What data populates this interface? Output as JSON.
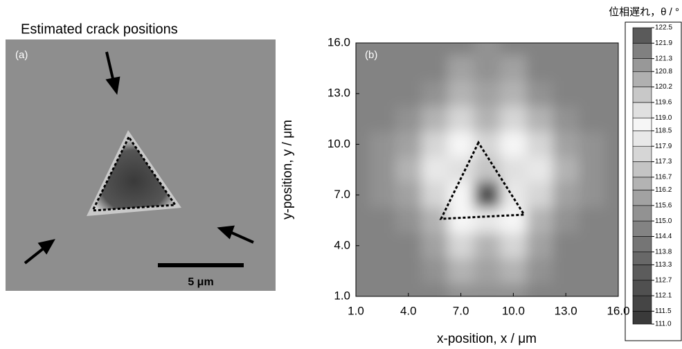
{
  "panel_a": {
    "title": "Estimated crack positions",
    "label": "(a)",
    "scale_bar": "5 μm"
  },
  "chart_data": {
    "type": "contour",
    "label": "(b)",
    "colorbar_title": "位相遅れ，θ / °",
    "xlabel": "x-position,  x / μm",
    "ylabel": "y-position,  y / μm",
    "xlim": [
      1,
      16
    ],
    "ylim": [
      1,
      16
    ],
    "xticks": [
      {
        "value": 1,
        "label": "1.0"
      },
      {
        "value": 4,
        "label": "4.0"
      },
      {
        "value": 7,
        "label": "7.0"
      },
      {
        "value": 10,
        "label": "10.0"
      },
      {
        "value": 13,
        "label": "13.0"
      },
      {
        "value": 16,
        "label": "16.0"
      }
    ],
    "yticks": [
      {
        "value": 1,
        "label": "1.0"
      },
      {
        "value": 4,
        "label": "4.0"
      },
      {
        "value": 7,
        "label": "7.0"
      },
      {
        "value": 10,
        "label": "10.0"
      },
      {
        "value": 13,
        "label": "13.0"
      },
      {
        "value": 16,
        "label": "16.0"
      }
    ],
    "levels": [
      {
        "value": 111,
        "label": "111.0"
      },
      111.5,
      112.1,
      112.7,
      113.3,
      113.8,
      114.4,
      {
        "value": 115,
        "label": "115.0"
      },
      115.6,
      116.2,
      116.7,
      117.3,
      117.9,
      118.5,
      {
        "value": 119,
        "label": "119.0"
      },
      119.6,
      120.2,
      120.8,
      121.3,
      121.9,
      122.5
    ],
    "level_colors": [
      "#3a3a3a",
      "#454545",
      "#505050",
      "#5c5c5c",
      "#686868",
      "#757575",
      "#838383",
      "#929292",
      "#a2a2a2",
      "#b3b3b3",
      "#c4c4c4",
      "#d6d6d6",
      "#e8e8e8",
      "#f6f6f6",
      "#e0e0e0",
      "#c8c8c8",
      "#b0b0b0",
      "#989898",
      "#808080",
      "#5a5a5a"
    ],
    "x": [
      1,
      2.5,
      4,
      5.5,
      7,
      8.5,
      10,
      11.5,
      13,
      14.5,
      16
    ],
    "y": [
      16,
      14.5,
      13,
      11.5,
      10,
      8.5,
      7,
      5.5,
      4,
      2.5,
      1
    ],
    "z": [
      [
        114.4,
        114.4,
        114.4,
        114.4,
        114.4,
        115.0,
        114.4,
        114.4,
        114.4,
        114.4,
        114.4
      ],
      [
        114.4,
        114.4,
        114.4,
        114.4,
        115.6,
        115.0,
        115.6,
        114.4,
        114.4,
        114.4,
        114.4
      ],
      [
        114.4,
        114.4,
        114.4,
        115.0,
        116.2,
        115.6,
        116.2,
        115.0,
        114.4,
        114.4,
        114.4
      ],
      [
        114.4,
        114.4,
        115.0,
        116.2,
        117.3,
        116.2,
        117.3,
        116.2,
        115.0,
        114.4,
        114.4
      ],
      [
        114.4,
        115.0,
        115.6,
        117.3,
        118.5,
        117.3,
        118.5,
        117.3,
        115.6,
        115.0,
        114.4
      ],
      [
        114.4,
        115.0,
        116.2,
        117.9,
        119.0,
        116.7,
        119.0,
        117.9,
        116.2,
        115.0,
        114.4
      ],
      [
        114.4,
        115.0,
        115.6,
        117.3,
        118.5,
        112.1,
        117.9,
        117.3,
        115.6,
        115.0,
        114.4
      ],
      [
        114.4,
        114.4,
        115.0,
        116.2,
        118.5,
        117.9,
        118.5,
        116.2,
        115.0,
        114.4,
        114.4
      ],
      [
        114.4,
        114.4,
        114.4,
        115.6,
        117.3,
        116.2,
        117.3,
        115.6,
        114.4,
        114.4,
        114.4
      ],
      [
        114.4,
        114.4,
        114.4,
        115.0,
        116.2,
        115.6,
        116.2,
        115.0,
        114.4,
        114.4,
        114.4
      ],
      [
        114.4,
        114.4,
        114.4,
        114.4,
        115.0,
        115.0,
        115.0,
        114.4,
        114.4,
        114.4,
        114.4
      ]
    ]
  }
}
